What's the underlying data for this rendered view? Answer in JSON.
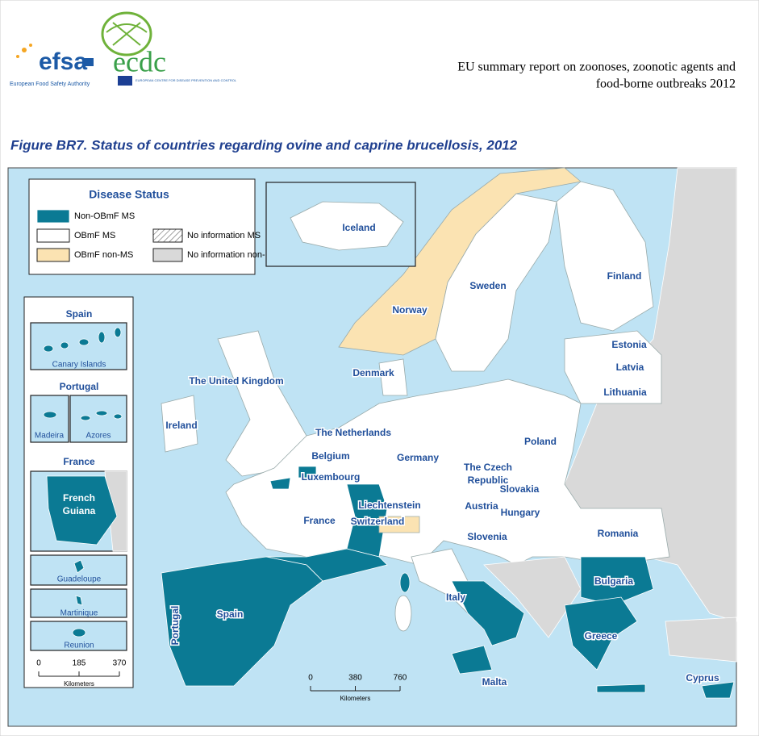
{
  "header": {
    "efsa_logo": "efsa",
    "efsa_tagline": "European Food Safety Authority",
    "ecdc_logo": "ecdc",
    "ecdc_tagline": "EUROPEAN CENTRE FOR DISEASE PREVENTION AND CONTROL",
    "report_title": [
      "EU summary report on zoonoses, zoonotic agents and",
      "food-borne outbreaks 2012"
    ]
  },
  "figure_caption": "Figure BR7.  Status of countries regarding ovine and caprine brucellosis, 2012",
  "legend": {
    "title": "Disease Status",
    "items": [
      "Non-OBmF MS",
      "OBmF MS",
      "No information MS",
      "OBmF non-MS",
      "No information non-MS"
    ]
  },
  "insets": [
    {
      "title": "Spain",
      "boxes": [
        "Canary Islands"
      ]
    },
    {
      "title": "Portugal",
      "boxes": [
        "Madeira",
        "Azores"
      ]
    },
    {
      "title": "France",
      "boxes": [
        [
          "French",
          "Guiana"
        ],
        "Guadeloupe",
        "Martinique",
        "Reunion"
      ]
    }
  ],
  "iceland_inset": "Iceland",
  "country_labels": [
    "Sweden",
    "Finland",
    "Norway",
    "Estonia",
    "Latvia",
    "Lithuania",
    "Denmark",
    "The United Kingdom",
    "Ireland",
    "The Netherlands",
    "Poland",
    "Belgium",
    "Germany",
    "Luxembourg",
    [
      "The Czech",
      "Republic"
    ],
    "Slovakia",
    "Liechtenstein",
    "Austria",
    "Hungary",
    "France",
    "Switzerland",
    "Slovenia",
    "Romania",
    "Bulgaria",
    "Italy",
    "Spain",
    "Portugal",
    "Greece",
    "Malta",
    "Cyprus"
  ],
  "scale_bars": {
    "main": {
      "ticks": [
        0,
        380,
        760
      ],
      "unit": "Kilometers"
    },
    "inset": {
      "ticks": [
        0,
        185,
        370
      ],
      "unit": "Kilometers"
    }
  }
}
